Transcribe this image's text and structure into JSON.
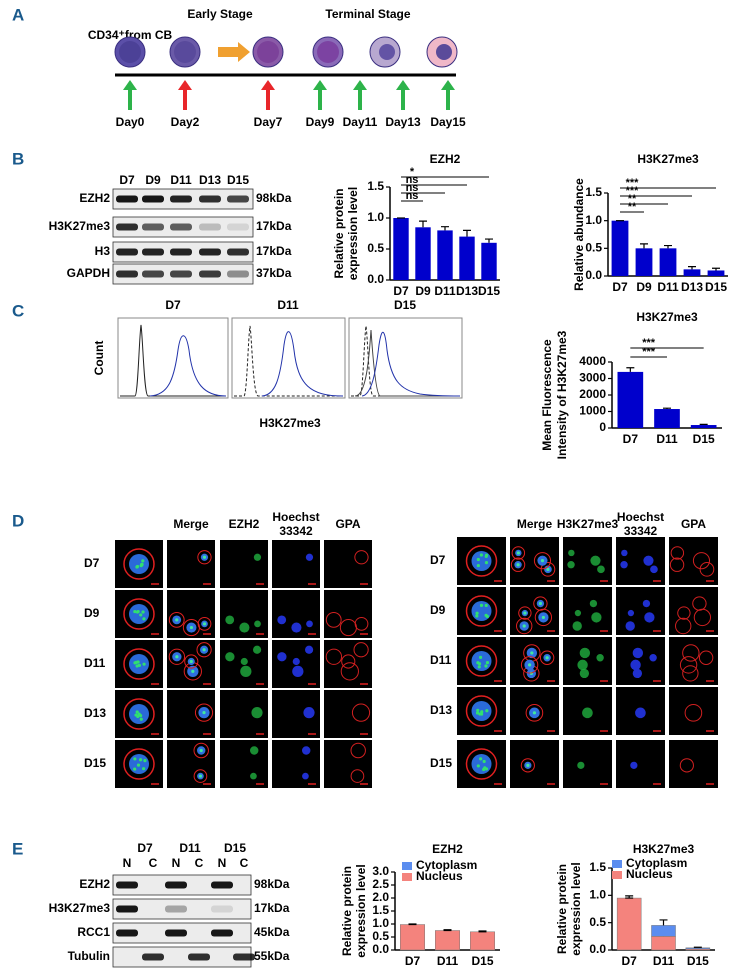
{
  "panel_labels": [
    "A",
    "B",
    "C",
    "D",
    "E"
  ],
  "panel_a": {
    "source": "CD34⁺from CB",
    "early": "Early Stage",
    "terminal": "Terminal Stage",
    "days": [
      {
        "label": "Day0",
        "arrow_color": "#2db34a"
      },
      {
        "label": "Day2",
        "arrow_color": "#e8262a"
      },
      {
        "label": "Day7",
        "arrow_color": "#e8262a"
      },
      {
        "label": "Day9",
        "arrow_color": "#2db34a"
      },
      {
        "label": "Day11",
        "arrow_color": "#2db34a"
      },
      {
        "label": "Day13",
        "arrow_color": "#2db34a"
      },
      {
        "label": "Day15",
        "arrow_color": "#2db34a"
      }
    ]
  },
  "panel_b_blot": {
    "lanes": [
      "D7",
      "D9",
      "D11",
      "D13",
      "D15"
    ],
    "rows": [
      {
        "protein": "EZH2",
        "size": "98kDa"
      },
      {
        "protein": "H3K27me3",
        "size": "17kDa"
      },
      {
        "protein": "H3",
        "size": "17kDa"
      },
      {
        "protein": "GAPDH",
        "size": "37kDa"
      }
    ]
  },
  "panel_c_flow": {
    "panels": [
      "D7",
      "D11",
      "D15"
    ],
    "ylabel": "Count",
    "xlabel": "H3K27me3"
  },
  "panel_d": {
    "left_headers": [
      [
        "Merge"
      ],
      [
        "EZH2"
      ],
      [
        "Hoechst",
        "33342"
      ],
      [
        "GPA"
      ]
    ],
    "right_headers": [
      [
        "Merge"
      ],
      [
        "H3K27me3"
      ],
      [
        "Hoechst",
        "33342"
      ],
      [
        "GPA"
      ]
    ],
    "rows": [
      "D7",
      "D9",
      "D11",
      "D13",
      "D15"
    ]
  },
  "panel_e_blot": {
    "lanes": [
      "D7",
      "D11",
      "D15"
    ],
    "fractions": [
      "N",
      "C",
      "N",
      "C",
      "N",
      "C"
    ],
    "rows": [
      {
        "protein": "EZH2",
        "size": "98kDa"
      },
      {
        "protein": "H3K27me3",
        "size": "17kDa"
      },
      {
        "protein": "RCC1",
        "size": "45kDa"
      },
      {
        "protein": "Tubulin",
        "size": "55kDa"
      }
    ]
  },
  "chart_data": [
    {
      "type": "bar",
      "title": "EZH2",
      "ylabel": [
        "Relative protein",
        "expression level"
      ],
      "categories": [
        "D7",
        "D9",
        "D11",
        "D13",
        "D15"
      ],
      "values": [
        1,
        0.85,
        0.8,
        0.7,
        0.6
      ],
      "errors": [
        0,
        0.1,
        0.06,
        0.1,
        0.06
      ],
      "color": "#0000cc",
      "ylim": [
        0,
        1.5
      ],
      "yticks": [
        {
          "value": 0,
          "label": "0.0"
        },
        0.5,
        {
          "value": 1,
          "label": "1.0"
        },
        1.5
      ],
      "annotations": [
        {
          "label": "ns",
          "between": [
            "D7",
            "D9"
          ]
        },
        {
          "label": "ns",
          "between": [
            "D7",
            "D11"
          ]
        },
        {
          "label": "ns",
          "between": [
            "D7",
            "D13"
          ]
        },
        {
          "label": "*",
          "between": [
            "D7",
            "D15"
          ]
        }
      ]
    },
    {
      "type": "bar",
      "title": "H3K27me3",
      "ylabel": [
        "Relative abundance"
      ],
      "categories": [
        "D7",
        "D9",
        "D11",
        "D13",
        "D15"
      ],
      "values": [
        1,
        0.5,
        0.5,
        0.12,
        0.1
      ],
      "errors": [
        0,
        0.08,
        0.05,
        0.05,
        0.04
      ],
      "color": "#0000cc",
      "ylim": [
        0,
        1.5
      ],
      "yticks": [
        {
          "value": 0,
          "label": "0.0"
        },
        0.5,
        {
          "value": 1,
          "label": "1.0"
        },
        1.5
      ],
      "annotations": [
        {
          "label": "**",
          "between": [
            "D7",
            "D9"
          ]
        },
        {
          "label": "**",
          "between": [
            "D7",
            "D11"
          ]
        },
        {
          "label": "***",
          "between": [
            "D7",
            "D13"
          ]
        },
        {
          "label": "***",
          "between": [
            "D7",
            "D15"
          ]
        }
      ]
    },
    {
      "type": "bar",
      "title": "H3K27me3",
      "ylabel": [
        "Mean Fluorescence",
        "Intensity of H3K27me3"
      ],
      "categories": [
        "D7",
        "D11",
        "D15"
      ],
      "values": [
        3400,
        1150,
        180
      ],
      "errors": [
        250,
        50,
        40
      ],
      "color": "#0000cc",
      "ylim": [
        0,
        4000
      ],
      "yticks": [
        0,
        1000,
        2000,
        3000,
        4000
      ],
      "annotations": [
        {
          "label": "***",
          "between": [
            "D7",
            "D11"
          ]
        },
        {
          "label": "***",
          "between": [
            "D7",
            "D15"
          ]
        }
      ]
    },
    {
      "type": "stacked_bar",
      "title": "EZH2",
      "ylabel": [
        "Relative protein",
        "expression level"
      ],
      "categories": [
        "D7",
        "D11",
        "D15"
      ],
      "series": [
        {
          "name": "Nucleus",
          "color": "#f4837d",
          "values": [
            0.98,
            0.75,
            0.7
          ],
          "errors": [
            0.02,
            0.03,
            0.03
          ]
        },
        {
          "name": "Cytoplasm",
          "color": "#5b8def",
          "values": [
            0,
            0,
            0
          ],
          "errors": [
            0,
            0,
            0
          ]
        }
      ],
      "ylim": [
        0,
        3
      ],
      "yticks": [
        {
          "value": 0,
          "label": "0.0"
        },
        0.5,
        {
          "value": 1,
          "label": "1.0"
        },
        1.5,
        {
          "value": 2,
          "label": "2.0"
        },
        2.5,
        {
          "value": 3,
          "label": "3.0"
        }
      ]
    },
    {
      "type": "stacked_bar",
      "title": "H3K27me3",
      "ylabel": [
        "Relative protein",
        "expression level"
      ],
      "categories": [
        "D7",
        "D11",
        "D15"
      ],
      "series": [
        {
          "name": "Nucleus",
          "color": "#f4837d",
          "values": [
            0.95,
            0.25,
            0.02
          ],
          "errors": [
            0.04,
            0.08,
            0.01
          ]
        },
        {
          "name": "Cytoplasm",
          "color": "#5b8def",
          "values": [
            0,
            0.2,
            0.02
          ],
          "errors": [
            0,
            0.1,
            0.01
          ]
        }
      ],
      "ylim": [
        0,
        1.5
      ],
      "yticks": [
        {
          "value": 0,
          "label": "0.0"
        },
        0.5,
        {
          "value": 1,
          "label": "1.0"
        },
        1.5
      ]
    }
  ]
}
